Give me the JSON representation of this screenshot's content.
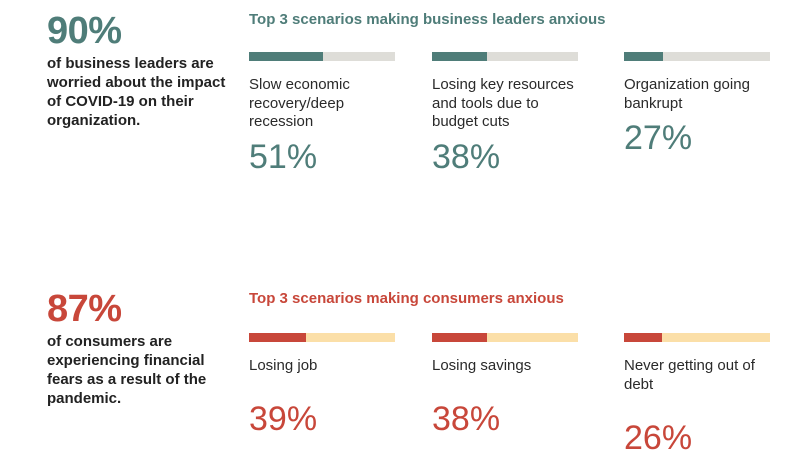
{
  "colors": {
    "business_accent": "#4f7d79",
    "business_track": "#deddd8",
    "consumer_accent": "#c8473a",
    "consumer_track": "#fbdfa8"
  },
  "business": {
    "stat": "90%",
    "description": "of business leaders are worried about the impact of COVID-19 on their organization.",
    "heading": "Top 3 scenarios making business leaders anxious",
    "scenarios": [
      {
        "label": "Slow economic recovery/deep recession",
        "percent": "51%",
        "value": 0.51
      },
      {
        "label": "Losing key resources and tools due to budget cuts",
        "percent": "38%",
        "value": 0.38
      },
      {
        "label": "Organization going bankrupt",
        "percent": "27%",
        "value": 0.27
      }
    ]
  },
  "consumers": {
    "stat": "87%",
    "description": "of consumers are experiencing financial fears as a result of the pandemic.",
    "heading": "Top 3 scenarios making consumers anxious",
    "scenarios": [
      {
        "label": "Losing job",
        "percent": "39%",
        "value": 0.39
      },
      {
        "label": "Losing savings",
        "percent": "38%",
        "value": 0.38
      },
      {
        "label": "Never getting out of debt",
        "percent": "26%",
        "value": 0.26
      }
    ]
  }
}
